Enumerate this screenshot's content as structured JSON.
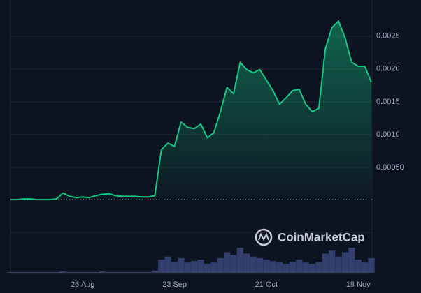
{
  "chart_data": {
    "type": "line",
    "categories": [
      null,
      null,
      null,
      null,
      null,
      null,
      null,
      null,
      null,
      null,
      null,
      "26 Aug",
      null,
      null,
      null,
      null,
      null,
      null,
      null,
      null,
      null,
      null,
      null,
      null,
      null,
      "23 Sep",
      null,
      null,
      null,
      null,
      null,
      null,
      null,
      null,
      null,
      null,
      null,
      null,
      null,
      "21 Oct",
      null,
      null,
      null,
      null,
      null,
      null,
      null,
      null,
      null,
      null,
      null,
      null,
      null,
      "18 Nov",
      null,
      null
    ],
    "values": [
      1e-05,
      1e-05,
      2e-05,
      2e-05,
      1e-05,
      1e-05,
      1e-05,
      2e-05,
      0.00011,
      6e-05,
      4e-05,
      5e-05,
      4e-05,
      7e-05,
      9e-05,
      0.0001,
      7e-05,
      6e-05,
      6e-05,
      6e-05,
      5e-05,
      5e-05,
      7e-05,
      0.00077,
      0.00087,
      0.00082,
      0.00119,
      0.00111,
      0.00109,
      0.00116,
      0.00095,
      0.00103,
      0.00135,
      0.00172,
      0.00162,
      0.0021,
      0.00199,
      0.00194,
      0.00199,
      0.00183,
      0.00167,
      0.00146,
      0.00156,
      0.00167,
      0.00169,
      0.00146,
      0.00135,
      0.0014,
      0.00231,
      0.00263,
      0.00273,
      0.00247,
      0.0021,
      0.00204,
      0.00204,
      0.0018
    ],
    "color": "#16c784",
    "ylim": [
      0,
      0.00305
    ],
    "yticks": [
      {
        "value": 0.0005,
        "label": "0.00050"
      },
      {
        "value": 0.001,
        "label": "0.0010"
      },
      0.0015,
      {
        "value": 0.002,
        "label": "0.0020"
      },
      0.0025
    ],
    "grid": true,
    "volume": {
      "color": "#3a4578",
      "values": [
        1,
        1,
        1,
        1,
        1,
        1,
        1,
        1,
        2,
        1,
        1,
        1,
        1,
        1,
        2,
        1,
        1,
        1,
        1,
        1,
        1,
        1,
        3,
        18,
        22,
        15,
        20,
        14,
        16,
        18,
        12,
        14,
        20,
        28,
        24,
        34,
        26,
        22,
        20,
        18,
        16,
        14,
        12,
        15,
        18,
        14,
        12,
        15,
        26,
        30,
        22,
        28,
        34,
        18,
        14,
        20
      ]
    },
    "watermark": "CoinMarketCap"
  }
}
